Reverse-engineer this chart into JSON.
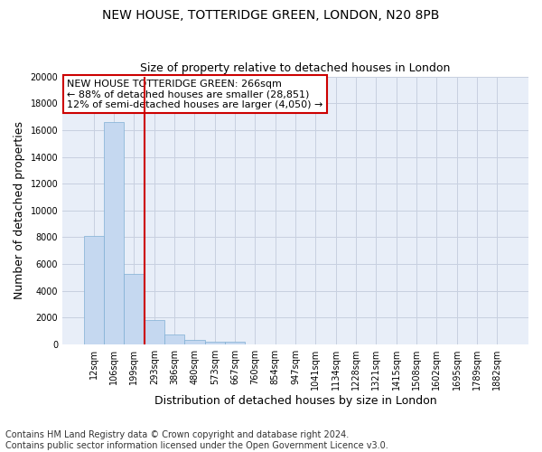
{
  "title1": "NEW HOUSE, TOTTERIDGE GREEN, LONDON, N20 8PB",
  "title2": "Size of property relative to detached houses in London",
  "xlabel": "Distribution of detached houses by size in London",
  "ylabel": "Number of detached properties",
  "categories": [
    "12sqm",
    "106sqm",
    "199sqm",
    "293sqm",
    "386sqm",
    "480sqm",
    "573sqm",
    "667sqm",
    "760sqm",
    "854sqm",
    "947sqm",
    "1041sqm",
    "1134sqm",
    "1228sqm",
    "1321sqm",
    "1415sqm",
    "1508sqm",
    "1602sqm",
    "1695sqm",
    "1789sqm",
    "1882sqm"
  ],
  "values": [
    8100,
    16600,
    5300,
    1800,
    750,
    310,
    200,
    180,
    0,
    0,
    0,
    0,
    0,
    0,
    0,
    0,
    0,
    0,
    0,
    0,
    0
  ],
  "bar_color": "#c5d8f0",
  "bar_edge_color": "#7fafd4",
  "vline_color": "#cc0000",
  "annotation_text": "NEW HOUSE TOTTERIDGE GREEN: 266sqm\n← 88% of detached houses are smaller (28,851)\n12% of semi-detached houses are larger (4,050) →",
  "annotation_box_color": "#ffffff",
  "annotation_box_edge_color": "#cc0000",
  "ylim": [
    0,
    20000
  ],
  "yticks": [
    0,
    2000,
    4000,
    6000,
    8000,
    10000,
    12000,
    14000,
    16000,
    18000,
    20000
  ],
  "footnote": "Contains HM Land Registry data © Crown copyright and database right 2024.\nContains public sector information licensed under the Open Government Licence v3.0.",
  "background_color": "#e8eef8",
  "grid_color": "#c8d0e0",
  "title_fontsize": 10,
  "subtitle_fontsize": 9,
  "axis_label_fontsize": 9,
  "tick_fontsize": 7,
  "annotation_fontsize": 8,
  "footnote_fontsize": 7
}
